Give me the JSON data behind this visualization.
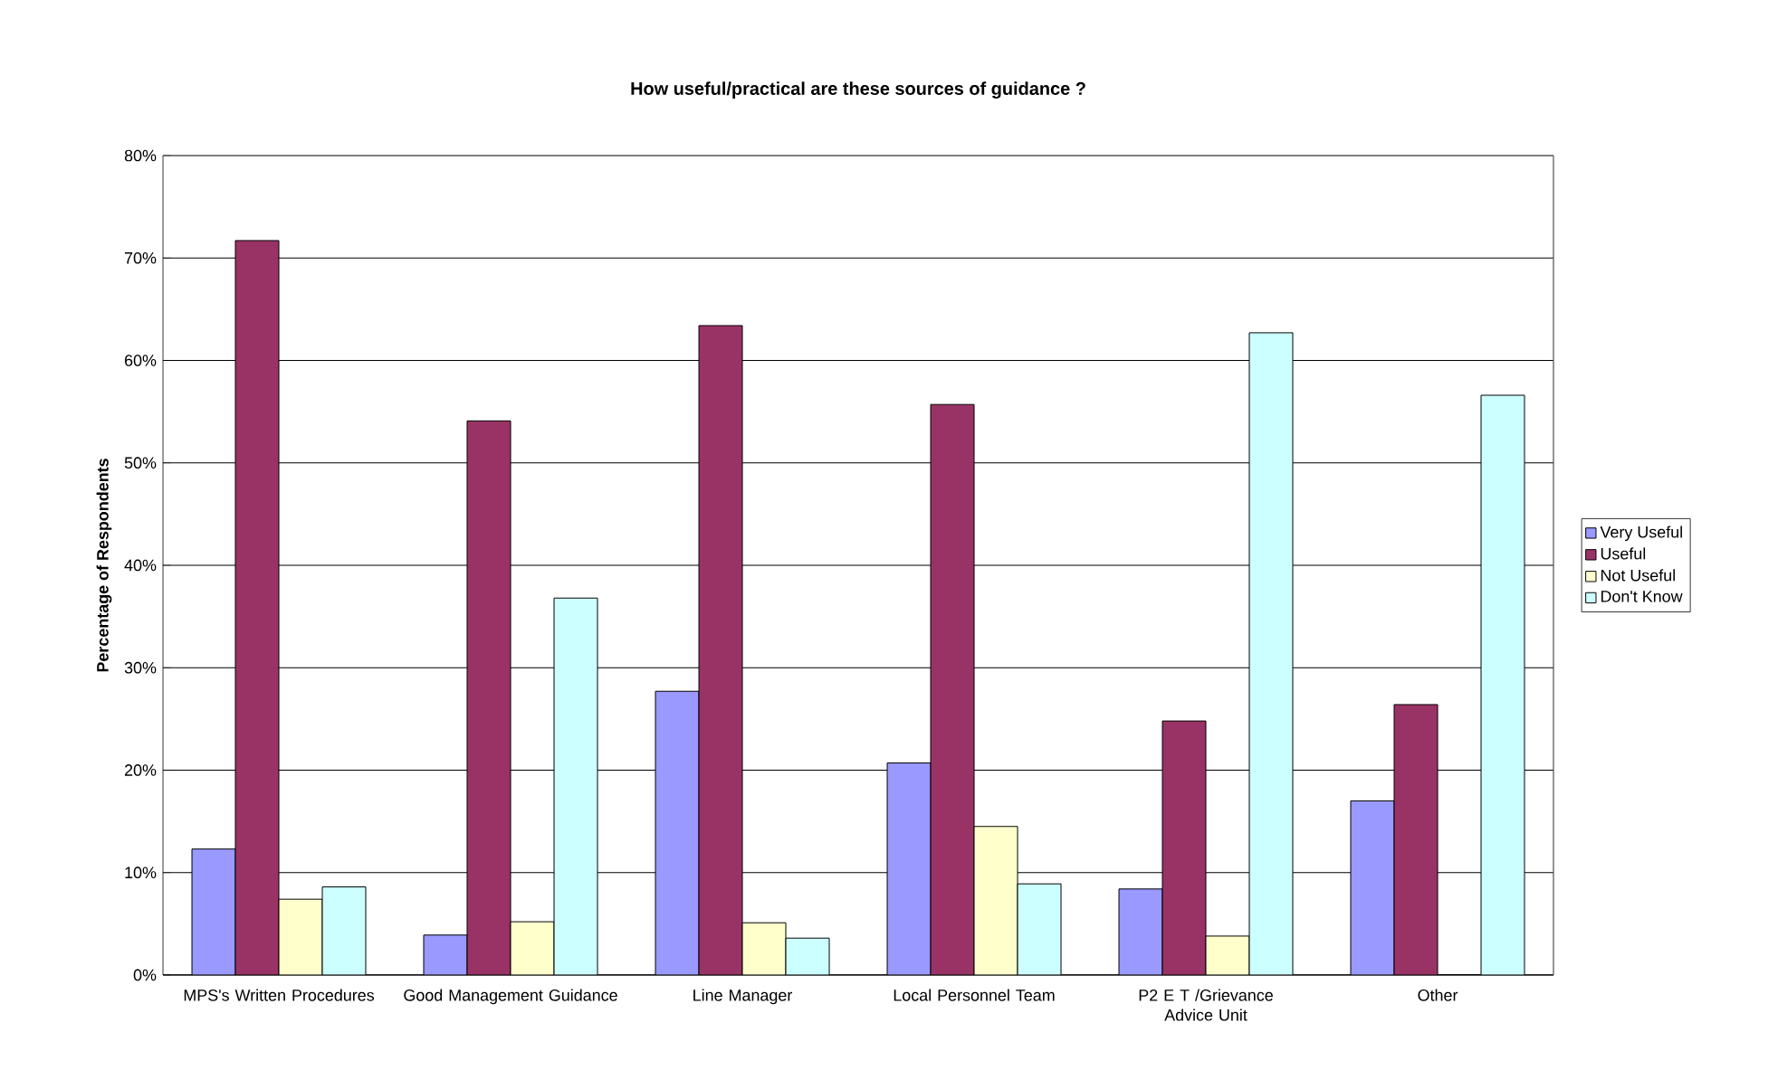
{
  "chart_data": {
    "type": "bar",
    "title": "How useful/practical are these sources of guidance ?",
    "ylabel": "Percentage of Respondents",
    "categories": [
      "MPS's Written Procedures",
      "Good Management Guidance",
      "Line Manager",
      "Local Personnel Team",
      "P2 E T /Grievance Advice Unit",
      "Other"
    ],
    "series": [
      {
        "name": "Very Useful",
        "color": "#9999ff",
        "values": [
          12.3,
          3.9,
          27.7,
          20.7,
          8.4,
          17.0
        ]
      },
      {
        "name": "Useful",
        "color": "#993366",
        "values": [
          71.7,
          54.1,
          63.4,
          55.7,
          24.8,
          26.4
        ]
      },
      {
        "name": "Not Useful",
        "color": "#ffffcc",
        "values": [
          7.4,
          5.2,
          5.1,
          14.5,
          3.8,
          0
        ]
      },
      {
        "name": "Don't Know",
        "color": "#ccffff",
        "values": [
          8.6,
          36.8,
          3.6,
          8.9,
          62.7,
          56.6
        ]
      }
    ],
    "ylim": [
      0,
      80
    ],
    "yticks": [
      {
        "value": 0,
        "label": "0%"
      },
      {
        "value": 10,
        "label": "10%"
      },
      {
        "value": 20,
        "label": "20%"
      },
      {
        "value": 30,
        "label": "30%"
      },
      {
        "value": 40,
        "label": "40%"
      },
      {
        "value": 50,
        "label": "50%"
      },
      {
        "value": 60,
        "label": "60%"
      },
      {
        "value": 70,
        "label": "70%"
      },
      {
        "value": 80,
        "label": "80%"
      }
    ],
    "grid": "y",
    "legend": "right"
  }
}
